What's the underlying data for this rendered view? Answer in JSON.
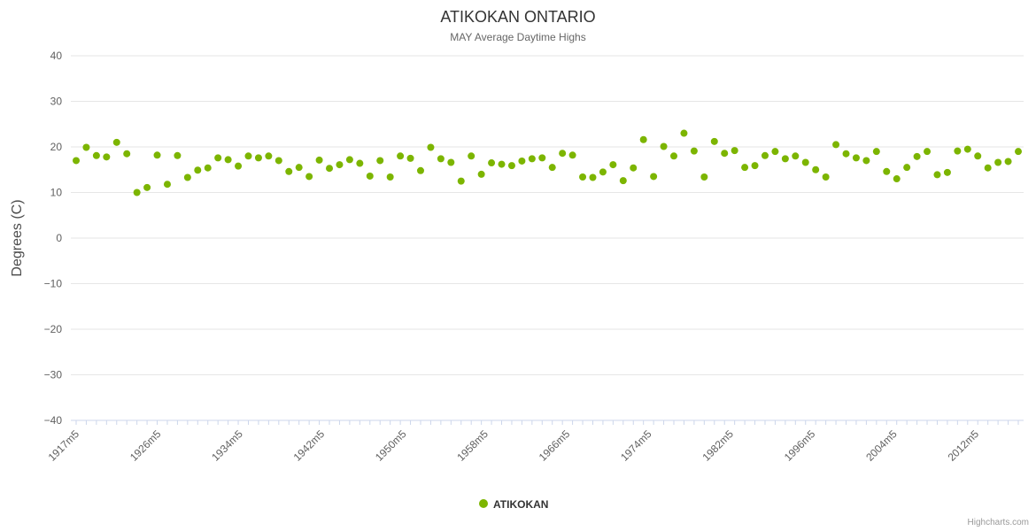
{
  "chart_data": {
    "type": "scatter",
    "title": "ATIKOKAN ONTARIO",
    "subtitle": "MAY Average Daytime Highs",
    "ylabel": "Degrees (C)",
    "ylim": [
      -40,
      40
    ],
    "ytick_step": 10,
    "grid": true,
    "legend_position": "bottom",
    "x_tick_labels": [
      "1917m5",
      "1926m5",
      "1934m5",
      "1942m5",
      "1950m5",
      "1958m5",
      "1966m5",
      "1974m5",
      "1982m5",
      "1996m5",
      "2004m5",
      "2012m5"
    ],
    "series": [
      {
        "name": "ATIKOKAN",
        "color": "#7cb500",
        "values": [
          17,
          19.9,
          18.1,
          17.8,
          21,
          18.5,
          10,
          11.1,
          18.2,
          11.8,
          18.1,
          13.3,
          14.9,
          15.4,
          17.6,
          17.2,
          15.8,
          18,
          17.6,
          18,
          17,
          14.6,
          15.5,
          13.5,
          17.1,
          15.3,
          16.1,
          17.2,
          16.4,
          13.6,
          17,
          13.4,
          18,
          17.5,
          14.8,
          19.9,
          17.4,
          16.6,
          12.5,
          18,
          14,
          16.5,
          16.2,
          15.9,
          16.9,
          17.4,
          17.6,
          15.5,
          18.6,
          18.2,
          13.4,
          13.3,
          14.5,
          16.1,
          12.6,
          15.4,
          21.6,
          13.5,
          20.1,
          18,
          23,
          19.1,
          13.4,
          21.2,
          18.6,
          19.2,
          15.5,
          15.9,
          18.1,
          19,
          17.4,
          18,
          16.6,
          15,
          13.4,
          20.5,
          18.5,
          17.6,
          17,
          19,
          14.6,
          13,
          15.5,
          17.9,
          19,
          13.9,
          14.4,
          19.1,
          19.5,
          18,
          15.4,
          16.6,
          16.8,
          19
        ]
      }
    ],
    "colors": {
      "title": "#333333",
      "subtitle": "#666666",
      "axis_label": "#606060",
      "gridline": "#e6e6e6",
      "axis_line": "#ccd6eb",
      "legend_text": "#333333",
      "credit": "#999999"
    }
  },
  "footer": {
    "credit": "Highcharts.com"
  }
}
